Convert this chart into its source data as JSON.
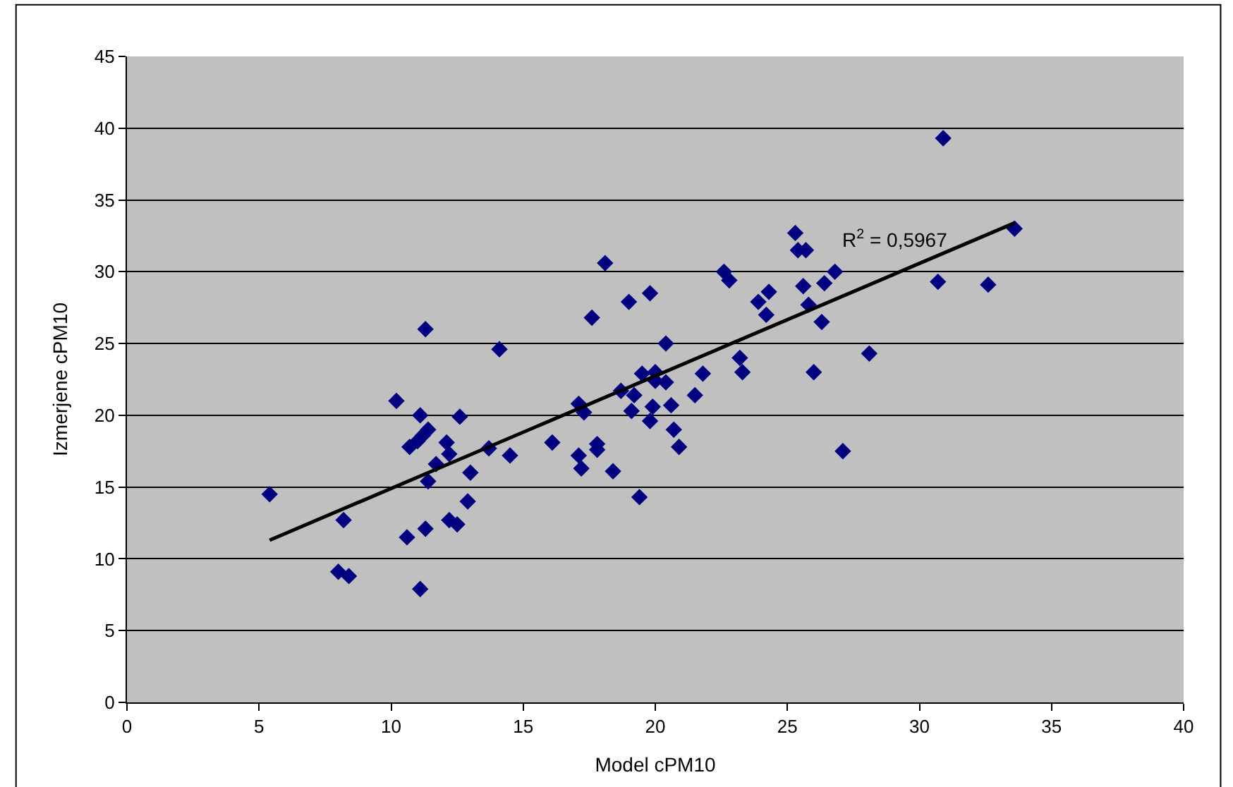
{
  "chart_data": {
    "type": "scatter",
    "xlabel": "Model cPM10",
    "ylabel": "Izmerjene cPM10",
    "marker": "diamond",
    "grid": "y",
    "legend": false,
    "xlim": [
      0,
      40
    ],
    "xticks": [
      0,
      5,
      10,
      15,
      20,
      25,
      30,
      35,
      40
    ],
    "ylim": [
      0,
      45
    ],
    "yticks": [
      0,
      5,
      10,
      15,
      20,
      25,
      30,
      35,
      40,
      45
    ],
    "annotations": [
      "R$^{2}$ = 0,5967"
    ],
    "series": [
      {
        "color": "#000080",
        "x": [
          5.4,
          8.0,
          8.2,
          8.4,
          10.2,
          10.6,
          10.7,
          11.0,
          11.1,
          11.1,
          11.2,
          11.3,
          11.3,
          11.4,
          11.4,
          11.7,
          12.1,
          12.2,
          12.2,
          12.5,
          12.6,
          12.9,
          13.0,
          13.7,
          14.1,
          14.5,
          16.1,
          17.1,
          17.1,
          17.2,
          17.3,
          17.6,
          17.8,
          17.8,
          18.1,
          18.4,
          18.7,
          19.0,
          19.1,
          19.2,
          19.4,
          19.5,
          19.8,
          19.8,
          19.9,
          20.0,
          20.0,
          20.4,
          20.4,
          20.6,
          20.7,
          20.9,
          21.5,
          21.8,
          22.6,
          22.8,
          23.2,
          23.3,
          23.9,
          24.2,
          24.3,
          25.3,
          25.4,
          25.6,
          25.7,
          25.8,
          26.0,
          26.3,
          26.4,
          26.8,
          27.1,
          28.1,
          30.7,
          30.9,
          32.6,
          33.6
        ],
        "values": [
          14.5,
          9.1,
          12.7,
          8.8,
          21.0,
          11.5,
          17.8,
          18.2,
          7.9,
          20.0,
          18.6,
          26.0,
          12.1,
          19.0,
          15.4,
          16.6,
          18.1,
          17.3,
          12.7,
          12.4,
          19.9,
          14.0,
          16.0,
          17.7,
          24.6,
          17.2,
          18.1,
          20.8,
          17.2,
          16.3,
          20.2,
          26.8,
          18.0,
          17.6,
          30.6,
          16.1,
          21.7,
          27.9,
          20.3,
          21.4,
          14.3,
          22.9,
          28.5,
          19.6,
          20.6,
          22.4,
          23.0,
          25.0,
          22.3,
          20.7,
          19.0,
          17.8,
          21.4,
          22.9,
          30.0,
          29.4,
          24.0,
          23.0,
          27.9,
          27.0,
          28.6,
          32.7,
          31.5,
          29.0,
          31.5,
          27.7,
          23.0,
          26.5,
          29.2,
          30.0,
          17.5,
          24.3,
          29.3,
          39.3,
          29.1,
          33.0
        ]
      },
      {
        "type": "line",
        "color": "#000000",
        "marker": "none",
        "x": [
          5.4,
          33.6
        ],
        "values": [
          11.3,
          33.4
        ]
      }
    ]
  }
}
